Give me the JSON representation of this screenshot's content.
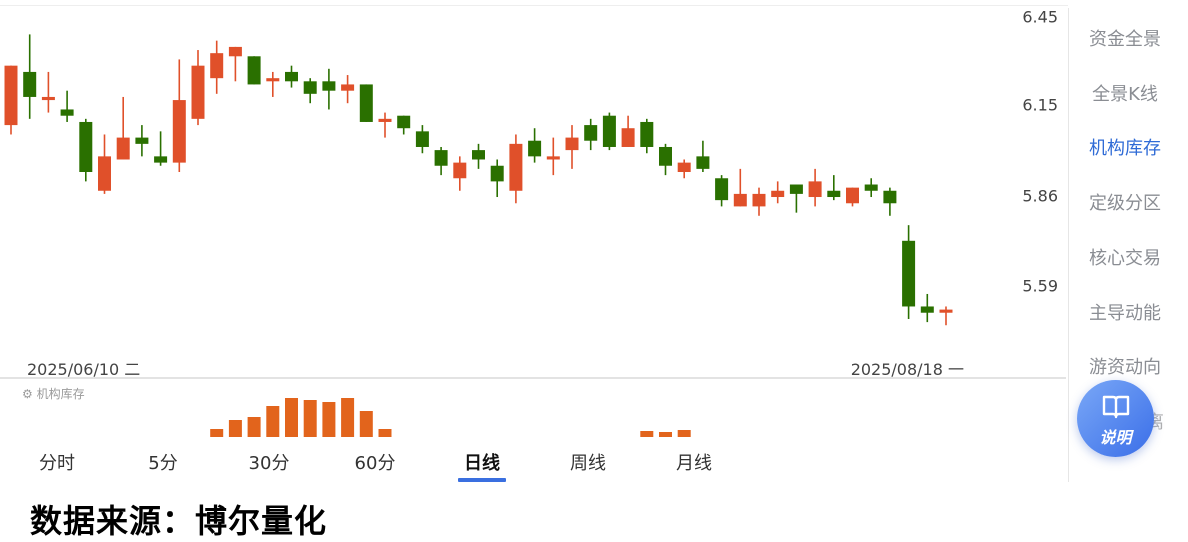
{
  "chart_data": {
    "type": "candlestick",
    "up_color": "#e0502a",
    "down_color": "#2a7000",
    "ylim": [
      5.4,
      6.5
    ],
    "y_ticks": [
      "6.45",
      "6.15",
      "5.86",
      "5.59"
    ],
    "x_labels": {
      "start": "2025/06/10 二",
      "end": "2025/08/18 一"
    },
    "candles": [
      [
        6.1,
        6.29,
        6.07,
        6.29
      ],
      [
        6.27,
        6.39,
        6.12,
        6.19
      ],
      [
        6.18,
        6.27,
        6.14,
        6.19
      ],
      [
        6.15,
        6.21,
        6.11,
        6.13
      ],
      [
        6.11,
        6.12,
        5.92,
        5.95
      ],
      [
        5.89,
        6.07,
        5.88,
        6.0
      ],
      [
        5.99,
        6.19,
        5.99,
        6.06
      ],
      [
        6.06,
        6.1,
        6.0,
        6.04
      ],
      [
        6.0,
        6.08,
        5.97,
        5.98
      ],
      [
        5.98,
        6.31,
        5.95,
        6.18
      ],
      [
        6.12,
        6.34,
        6.1,
        6.29
      ],
      [
        6.25,
        6.37,
        6.2,
        6.33
      ],
      [
        6.32,
        6.35,
        6.24,
        6.35
      ],
      [
        6.32,
        6.32,
        6.23,
        6.23
      ],
      [
        6.24,
        6.27,
        6.19,
        6.25
      ],
      [
        6.27,
        6.29,
        6.22,
        6.24
      ],
      [
        6.24,
        6.25,
        6.17,
        6.2
      ],
      [
        6.24,
        6.28,
        6.15,
        6.21
      ],
      [
        6.21,
        6.26,
        6.17,
        6.23
      ],
      [
        6.23,
        6.23,
        6.11,
        6.11
      ],
      [
        6.11,
        6.14,
        6.06,
        6.12
      ],
      [
        6.13,
        6.13,
        6.07,
        6.09
      ],
      [
        6.08,
        6.1,
        6.01,
        6.03
      ],
      [
        6.02,
        6.03,
        5.94,
        5.97
      ],
      [
        5.93,
        6.0,
        5.89,
        5.98
      ],
      [
        6.02,
        6.04,
        5.96,
        5.99
      ],
      [
        5.97,
        5.99,
        5.87,
        5.92
      ],
      [
        5.89,
        6.07,
        5.85,
        6.04
      ],
      [
        6.05,
        6.09,
        5.98,
        6.0
      ],
      [
        5.99,
        6.06,
        5.94,
        6.0
      ],
      [
        6.02,
        6.1,
        5.96,
        6.06
      ],
      [
        6.1,
        6.12,
        6.02,
        6.05
      ],
      [
        6.13,
        6.14,
        6.02,
        6.03
      ],
      [
        6.03,
        6.13,
        6.03,
        6.09
      ],
      [
        6.11,
        6.12,
        6.01,
        6.03
      ],
      [
        6.03,
        6.04,
        5.94,
        5.97
      ],
      [
        5.95,
        5.99,
        5.93,
        5.98
      ],
      [
        6.0,
        6.05,
        5.95,
        5.96
      ],
      [
        5.93,
        5.94,
        5.84,
        5.86
      ],
      [
        5.84,
        5.96,
        5.84,
        5.88
      ],
      [
        5.84,
        5.9,
        5.81,
        5.88
      ],
      [
        5.87,
        5.92,
        5.85,
        5.89
      ],
      [
        5.91,
        5.91,
        5.82,
        5.88
      ],
      [
        5.87,
        5.96,
        5.84,
        5.92
      ],
      [
        5.89,
        5.94,
        5.86,
        5.87
      ],
      [
        5.85,
        5.9,
        5.84,
        5.9
      ],
      [
        5.91,
        5.93,
        5.87,
        5.89
      ],
      [
        5.89,
        5.9,
        5.81,
        5.85
      ],
      [
        5.73,
        5.78,
        5.48,
        5.52
      ],
      [
        5.52,
        5.56,
        5.47,
        5.5
      ],
      [
        5.5,
        5.52,
        5.46,
        5.51
      ]
    ],
    "indicator": {
      "label": "机构库存",
      "color": "#e2641c",
      "bars": [
        {
          "candle": 11,
          "value": 8
        },
        {
          "candle": 12,
          "value": 17
        },
        {
          "candle": 13,
          "value": 20
        },
        {
          "candle": 14,
          "value": 31
        },
        {
          "candle": 15,
          "value": 39
        },
        {
          "candle": 16,
          "value": 37
        },
        {
          "candle": 17,
          "value": 35
        },
        {
          "candle": 18,
          "value": 39
        },
        {
          "candle": 19,
          "value": 26
        },
        {
          "candle": 20,
          "value": 8
        },
        {
          "candle": 34,
          "value": 6
        },
        {
          "candle": 35,
          "value": 5
        },
        {
          "candle": 36,
          "value": 7
        }
      ]
    }
  },
  "tabs": [
    {
      "label": "分时",
      "active": false
    },
    {
      "label": "5分",
      "active": false
    },
    {
      "label": "30分",
      "active": false
    },
    {
      "label": "60分",
      "active": false
    },
    {
      "label": "日线",
      "active": true
    },
    {
      "label": "周线",
      "active": false
    },
    {
      "label": "月线",
      "active": false
    }
  ],
  "sidebar": {
    "items": [
      {
        "label": "资金全景"
      },
      {
        "label": "全景K线"
      },
      {
        "label": "机构库存",
        "active": true
      },
      {
        "label": "定级分区"
      },
      {
        "label": "核心交易"
      },
      {
        "label": "主导动能"
      },
      {
        "label": "游资动向"
      },
      {
        "label": "离"
      }
    ]
  },
  "fab": {
    "label": "说明",
    "icon": "book-icon"
  },
  "source": "数据来源：博尔量化"
}
